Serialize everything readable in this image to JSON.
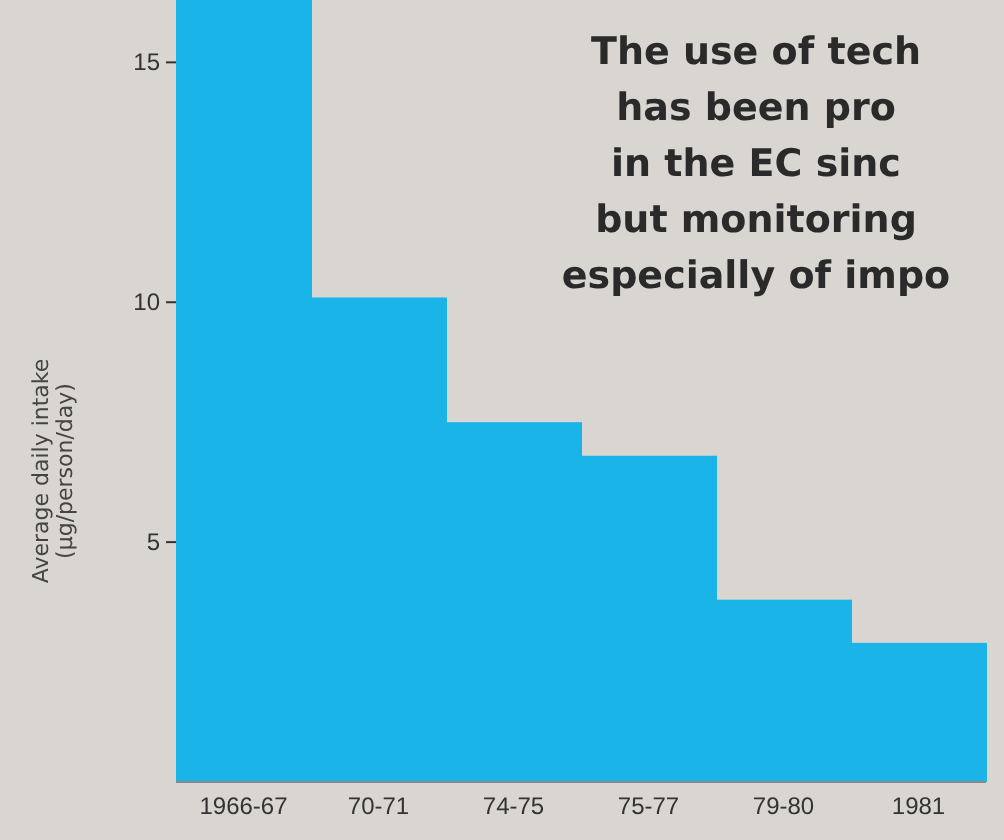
{
  "chart_data": {
    "type": "bar",
    "categories": [
      "1966-67",
      "70-71",
      "74-75",
      "75-77",
      "79-80",
      "1981"
    ],
    "values": [
      16.3,
      10.1,
      7.5,
      6.8,
      3.8,
      2.9
    ],
    "color": "#1ab4e8",
    "ylabel": "Average daily intake\n(µg/person/day)",
    "ylim": [
      0,
      16.3
    ],
    "yticks": [
      5,
      10,
      15
    ],
    "grid": false,
    "annotations": [
      "The use of tech",
      "has been pro",
      "in the EC sinc",
      "but monitoring",
      "especially of impo"
    ]
  }
}
